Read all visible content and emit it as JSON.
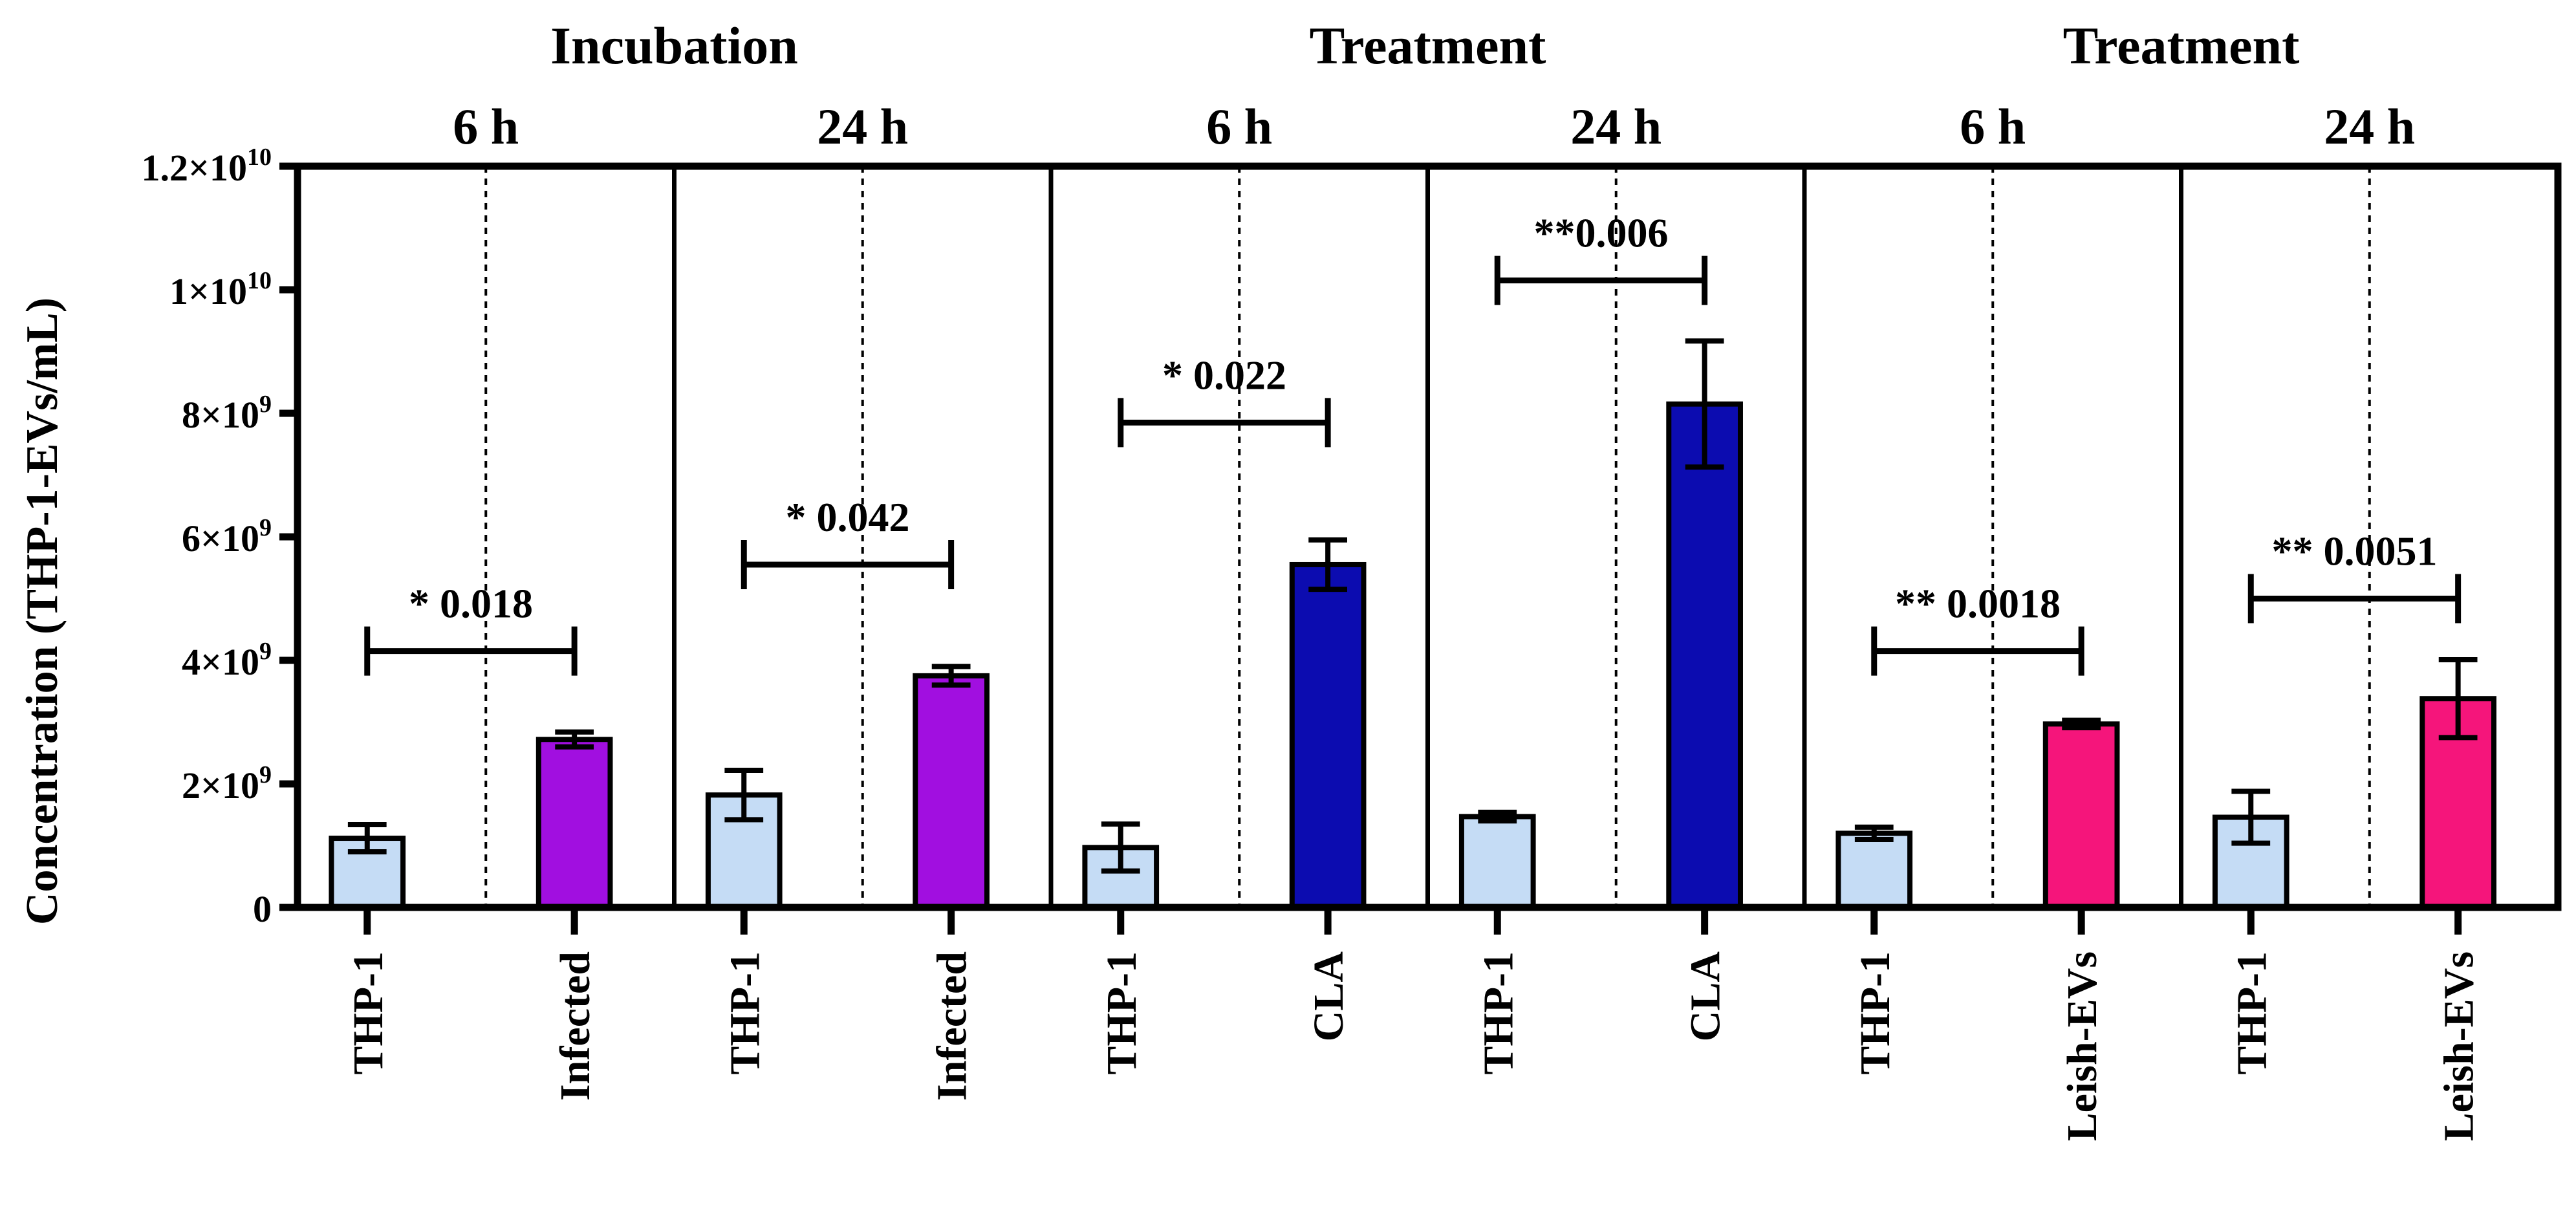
{
  "chart_data": {
    "type": "bar",
    "ylabel": "Concentration (THP-1-EVs/mL)",
    "ylim": [
      0,
      12000000000
    ],
    "y_ticks": [
      {
        "value": 0,
        "base": "0",
        "exp": ""
      },
      {
        "value": 2000000000,
        "base": "2×10",
        "exp": "9"
      },
      {
        "value": 4000000000,
        "base": "4×10",
        "exp": "9"
      },
      {
        "value": 6000000000,
        "base": "6×10",
        "exp": "9"
      },
      {
        "value": 8000000000,
        "base": "8×10",
        "exp": "9"
      },
      {
        "value": 10000000000,
        "base": "1×10",
        "exp": "10"
      },
      {
        "value": 12000000000,
        "base": "1.2×10",
        "exp": "10"
      }
    ],
    "group_headers": [
      {
        "label": "Incubation",
        "panels": [
          0,
          1
        ]
      },
      {
        "label": "Treatment",
        "panels": [
          2,
          3
        ]
      },
      {
        "label": "Treatment",
        "panels": [
          4,
          5
        ]
      }
    ],
    "colors": {
      "THP-1": "#c5dcf5",
      "Infected": "#a10fe0",
      "CLA": "#0c0cb0",
      "Leish-EVs": "#f5157b"
    },
    "panels": [
      {
        "time": "6 h",
        "bars": [
          {
            "category": "THP-1",
            "value": 1120000000,
            "error": 220000000
          },
          {
            "category": "Infected",
            "value": 2720000000,
            "error": 120000000
          }
        ],
        "significance": "* 0.018",
        "bracket_y": 4150000000
      },
      {
        "time": "24 h",
        "bars": [
          {
            "category": "THP-1",
            "value": 1820000000,
            "error": 400000000
          },
          {
            "category": "Infected",
            "value": 3750000000,
            "error": 150000000
          }
        ],
        "significance": "* 0.042",
        "bracket_y": 5550000000
      },
      {
        "time": "6  h",
        "bars": [
          {
            "category": "THP-1",
            "value": 970000000,
            "error": 380000000
          },
          {
            "category": "CLA",
            "value": 5550000000,
            "error": 400000000
          }
        ],
        "significance": "* 0.022",
        "bracket_y": 7850000000
      },
      {
        "time": "24 h",
        "bars": [
          {
            "category": "THP-1",
            "value": 1470000000,
            "error": 70000000
          },
          {
            "category": "CLA",
            "value": 8150000000,
            "error": 1020000000
          }
        ],
        "significance": "**0.006",
        "bracket_y": 10150000000
      },
      {
        "time": "6  h",
        "bars": [
          {
            "category": "THP-1",
            "value": 1200000000,
            "error": 100000000
          },
          {
            "category": "Leish-EVs",
            "value": 2970000000,
            "error": 60000000
          }
        ],
        "significance": "** 0.0018",
        "bracket_y": 4150000000
      },
      {
        "time": "24 h",
        "bars": [
          {
            "category": "THP-1",
            "value": 1460000000,
            "error": 420000000
          },
          {
            "category": "Leish-EVs",
            "value": 3380000000,
            "error": 630000000
          }
        ],
        "significance": "** 0.0051",
        "bracket_y": 5000000000
      }
    ]
  }
}
